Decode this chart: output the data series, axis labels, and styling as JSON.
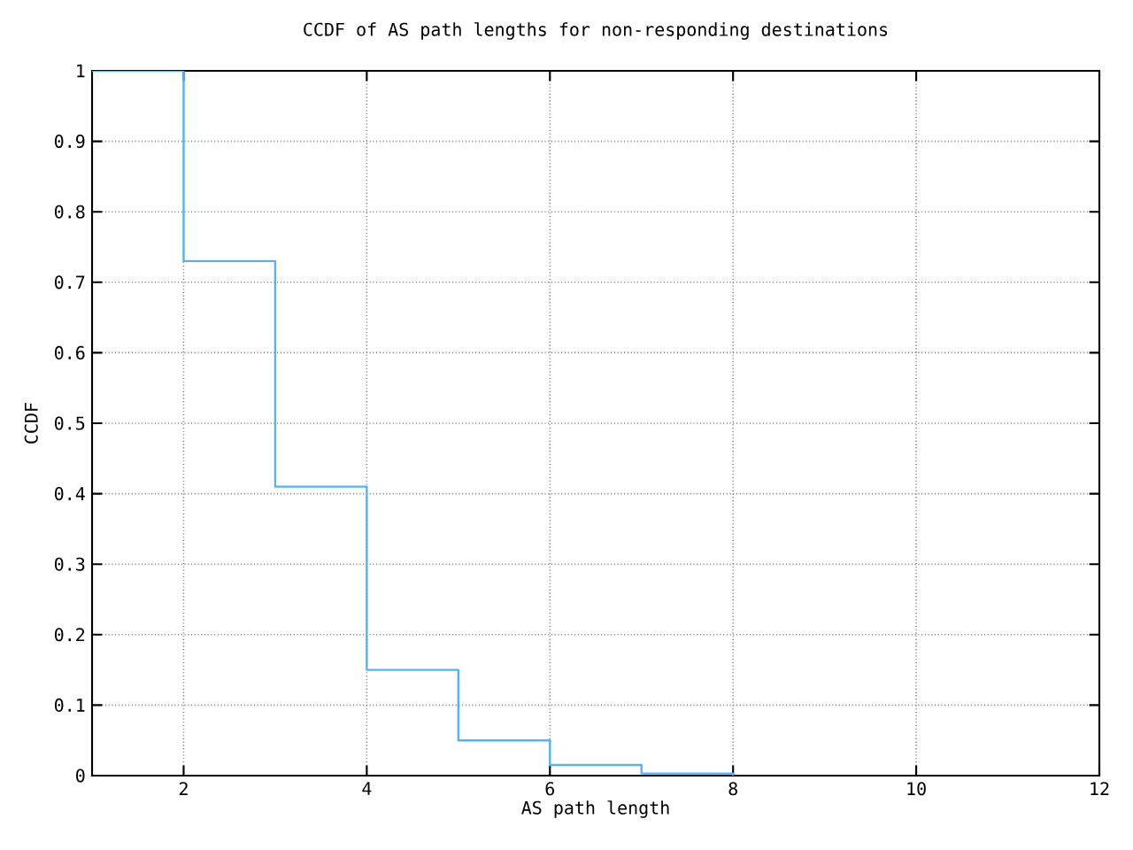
{
  "chart_data": {
    "type": "step",
    "title": "CCDF of AS path lengths for non-responding destinations",
    "xlabel": "AS path length",
    "ylabel": "CCDF",
    "x": [
      1,
      2,
      3,
      4,
      5,
      6,
      7,
      8
    ],
    "series": [
      {
        "color": "#56b4e9",
        "values": [
          1,
          0.73,
          0.41,
          0.15,
          0.05,
          0.015,
          0.003,
          0
        ]
      }
    ],
    "xlim": [
      1,
      12
    ],
    "ylim": [
      0,
      1
    ],
    "xticks": [
      2,
      4,
      6,
      8,
      10,
      12
    ],
    "yticks": [
      0,
      0.1,
      0.2,
      0.3,
      0.4,
      0.5,
      0.6,
      0.7,
      0.8,
      0.9,
      1
    ],
    "grid": true,
    "marker": "none",
    "line_style": "solid"
  }
}
